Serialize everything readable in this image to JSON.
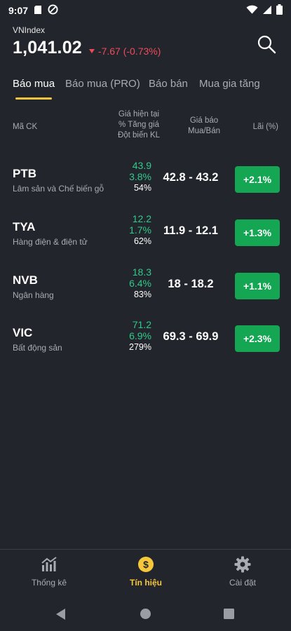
{
  "status_bar": {
    "time": "9:07"
  },
  "index": {
    "name": "VNIndex",
    "value": "1,041.02",
    "change": "-7.67 (-0.73%)"
  },
  "tabs": [
    {
      "label": "Báo mua",
      "active": true
    },
    {
      "label": "Báo mua (PRO)",
      "active": false
    },
    {
      "label": "Báo bán",
      "active": false
    },
    {
      "label": "Mua gia tăng",
      "active": false
    }
  ],
  "table": {
    "headers": {
      "code": "Mã CK",
      "price_line1": "Giá hiện tại",
      "price_line2": "% Tăng giá",
      "price_line3": "Đột biến KL",
      "quote_line1": "Giá báo",
      "quote_line2": "Mua/Bán",
      "profit": "Lãi (%)"
    },
    "rows": [
      {
        "code": "PTB",
        "sector": "Lâm sản và Chế biến gỗ",
        "price": "43.9",
        "pct": "3.8%",
        "volume": "54%",
        "quote": "42.8 - 43.2",
        "profit": "+2.1%"
      },
      {
        "code": "TYA",
        "sector": "Hàng điện & điện tử",
        "price": "12.2",
        "pct": "1.7%",
        "volume": "62%",
        "quote": "11.9 - 12.1",
        "profit": "+1.3%"
      },
      {
        "code": "NVB",
        "sector": "Ngân hàng",
        "price": "18.3",
        "pct": "6.4%",
        "volume": "83%",
        "quote": "18 - 18.2",
        "profit": "+1.1%"
      },
      {
        "code": "VIC",
        "sector": "Bất động sản",
        "price": "71.2",
        "pct": "6.9%",
        "volume": "279%",
        "quote": "69.3 - 69.9",
        "profit": "+2.3%"
      }
    ]
  },
  "bottom_nav": [
    {
      "label": "Thống kê",
      "icon": "chart-icon",
      "active": false
    },
    {
      "label": "Tín hiệu",
      "icon": "dollar-coin-icon",
      "active": true
    },
    {
      "label": "Cài đặt",
      "icon": "gear-icon",
      "active": false
    }
  ],
  "colors": {
    "background": "#22252c",
    "accent": "#f6c73b",
    "up": "#2ecc8a",
    "down": "#ef4a5a",
    "profit_badge": "#14a652"
  }
}
